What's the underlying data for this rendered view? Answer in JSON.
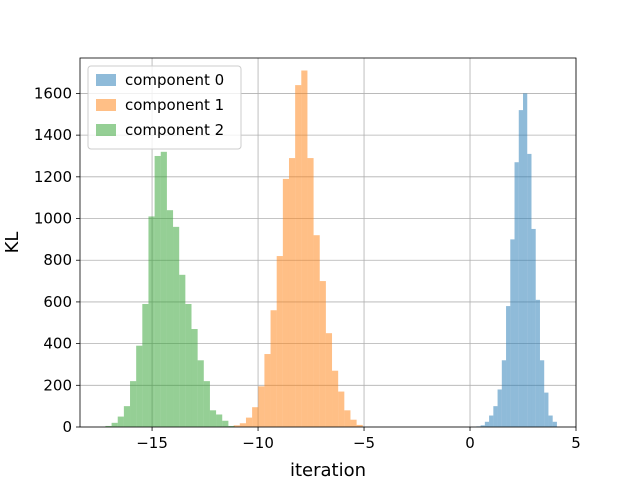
{
  "chart_data": {
    "type": "bar",
    "subtype": "histogram",
    "xlabel": "iteration",
    "ylabel": "KL",
    "xlim": [
      -18.4,
      5.0
    ],
    "ylim": [
      0,
      1770
    ],
    "x_ticks": [
      -15,
      -10,
      -5,
      0,
      5
    ],
    "x_tick_labels": [
      "−15",
      "−10",
      "−5",
      "0",
      "5"
    ],
    "y_ticks": [
      0,
      200,
      400,
      600,
      800,
      1000,
      1200,
      1400,
      1600
    ],
    "y_tick_labels": [
      "0",
      "200",
      "400",
      "600",
      "800",
      "1000",
      "1200",
      "1400",
      "1600"
    ],
    "grid": true,
    "legend_position": "top-left",
    "opacity": 0.5,
    "series": [
      {
        "name": "component 0",
        "color": "#1f77b4",
        "bin_start": 0.3,
        "bin_width": 0.2,
        "values": [
          3,
          8,
          25,
          55,
          100,
          180,
          320,
          580,
          900,
          1270,
          1520,
          1600,
          1310,
          950,
          610,
          320,
          165,
          55,
          25
        ]
      },
      {
        "name": "component 1",
        "color": "#ff7f0e",
        "bin_start": -11.15,
        "bin_width": 0.29,
        "values": [
          8,
          18,
          45,
          95,
          195,
          350,
          560,
          820,
          1190,
          1290,
          1640,
          1710,
          1290,
          920,
          700,
          450,
          270,
          170,
          80,
          35,
          10
        ]
      },
      {
        "name": "component 2",
        "color": "#2ca02c",
        "bin_start": -17.2,
        "bin_width": 0.29,
        "values": [
          5,
          20,
          50,
          100,
          220,
          390,
          590,
          1010,
          1300,
          1320,
          1040,
          960,
          730,
          590,
          470,
          320,
          220,
          80,
          60,
          30,
          5
        ]
      }
    ]
  }
}
